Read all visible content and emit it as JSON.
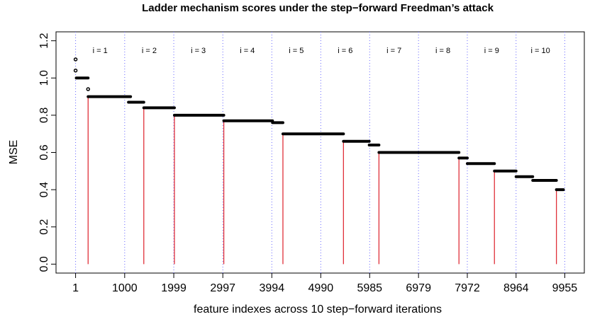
{
  "chart_data": {
    "type": "scatter",
    "title": "Ladder mechanism scores under the step−forward Freedman’s attack",
    "xlabel": "feature indexes across 10 step−forward iterations",
    "ylabel": "MSE",
    "xlim": [
      -397,
      10353
    ],
    "ylim": [
      -0.048,
      1.248
    ],
    "xticks": [
      1,
      1000,
      1999,
      2997,
      3994,
      4990,
      5985,
      6979,
      7972,
      8964,
      9955
    ],
    "yticks": [
      {
        "value": 0,
        "label": "0.0"
      },
      0.2,
      0.4,
      0.6,
      0.8,
      {
        "value": 1,
        "label": "1.0"
      },
      1.2
    ],
    "grid": true,
    "grid_color": "#6666ff",
    "color": "#000000",
    "drop_color": "#e0303a",
    "annotations": [
      "i = 1",
      "i = 2",
      "i = 3",
      "i = 4",
      "i = 5",
      "i = 6",
      "i = 7",
      "i = 8",
      "i = 9",
      "i = 10"
    ],
    "x": [
      1,
      1,
      256
    ],
    "values": [
      1.1,
      1.04,
      0.94
    ],
    "segments": {
      "x0": [
        15,
        256,
        1077,
        1389,
        2012,
        3017,
        4008,
        4220,
        5452,
        5976,
        6174,
        7802,
        7972,
        8524,
        8964,
        9303,
        9785
      ],
      "x1": [
        256,
        1120,
        1389,
        2012,
        3017,
        4008,
        4220,
        5452,
        5976,
        6174,
        7802,
        7972,
        8524,
        8964,
        9303,
        9785,
        9927
      ],
      "values": [
        1.0,
        0.9,
        0.87,
        0.84,
        0.8,
        0.77,
        0.76,
        0.7,
        0.66,
        0.64,
        0.6,
        0.57,
        0.54,
        0.5,
        0.47,
        0.45,
        0.4
      ]
    },
    "drops": {
      "x": [
        256,
        1389,
        2012,
        3017,
        4220,
        5452,
        6174,
        7802,
        8524,
        9785
      ],
      "values": [
        0.9,
        0.84,
        0.8,
        0.77,
        0.7,
        0.66,
        0.6,
        0.57,
        0.5,
        0.4
      ]
    }
  }
}
